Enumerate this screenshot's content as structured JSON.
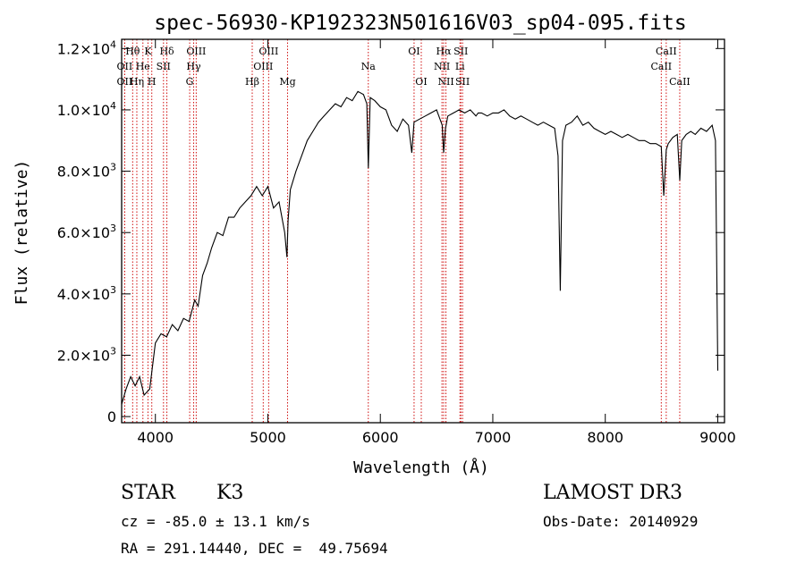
{
  "title": "spec-56930-KP192323N501616V03_sp04-095.fits",
  "chart_data": {
    "type": "line",
    "title": "spec-56930-KP192323N501616V03_sp04-095.fits",
    "xlabel": "Wavelength (Å)",
    "ylabel": "Flux (relative)",
    "xlim": [
      3700,
      9060
    ],
    "ylim": [
      -200,
      12300
    ],
    "x_ticks": [
      {
        "value": 4000,
        "label": "4000"
      },
      {
        "value": 5000,
        "label": "5000"
      },
      {
        "value": 6000,
        "label": "6000"
      },
      {
        "value": 7000,
        "label": "7000"
      },
      {
        "value": 8000,
        "label": "8000"
      },
      {
        "value": 9000,
        "label": "9000"
      }
    ],
    "y_ticks": [
      {
        "value": 0,
        "mant": "0",
        "exp": ""
      },
      {
        "value": 2000,
        "mant": "2.0×10",
        "exp": "3"
      },
      {
        "value": 4000,
        "mant": "4.0×10",
        "exp": "3"
      },
      {
        "value": 6000,
        "mant": "6.0×10",
        "exp": "3"
      },
      {
        "value": 8000,
        "mant": "8.0×10",
        "exp": "3"
      },
      {
        "value": 10000,
        "mant": "1.0×10",
        "exp": "4"
      },
      {
        "value": 12000,
        "mant": "1.2×10",
        "exp": "4"
      }
    ],
    "series": [
      {
        "x": [
          3700,
          3740,
          3780,
          3820,
          3860,
          3900,
          3950,
          4000,
          4050,
          4100,
          4150,
          4200,
          4250,
          4300,
          4350,
          4380,
          4420,
          4460,
          4500,
          4550,
          4600,
          4650,
          4700,
          4750,
          4800,
          4850,
          4900,
          4950,
          5000,
          5050,
          5100,
          5150,
          5170,
          5180,
          5200,
          5250,
          5300,
          5350,
          5400,
          5450,
          5500,
          5550,
          5600,
          5650,
          5700,
          5750,
          5800,
          5850,
          5880,
          5893,
          5910,
          5950,
          6000,
          6050,
          6100,
          6150,
          6200,
          6250,
          6280,
          6300,
          6350,
          6400,
          6450,
          6500,
          6550,
          6563,
          6580,
          6600,
          6650,
          6700,
          6750,
          6800,
          6850,
          6870,
          6900,
          6950,
          7000,
          7050,
          7100,
          7150,
          7200,
          7250,
          7300,
          7350,
          7400,
          7450,
          7500,
          7550,
          7580,
          7600,
          7620,
          7650,
          7700,
          7750,
          7800,
          7850,
          7900,
          7950,
          8000,
          8050,
          8100,
          8150,
          8200,
          8250,
          8300,
          8350,
          8400,
          8450,
          8498,
          8520,
          8542,
          8560,
          8600,
          8640,
          8662,
          8680,
          8720,
          8760,
          8800,
          8850,
          8900,
          8950,
          8980,
          9000
        ],
        "values": [
          400,
          900,
          1300,
          1000,
          1300,
          700,
          900,
          2400,
          2700,
          2600,
          3000,
          2800,
          3200,
          3100,
          3800,
          3600,
          4600,
          5000,
          5500,
          6000,
          5900,
          6500,
          6500,
          6800,
          7000,
          7200,
          7500,
          7200,
          7500,
          6800,
          7000,
          6000,
          5200,
          6400,
          7400,
          8000,
          8500,
          9000,
          9300,
          9600,
          9800,
          10000,
          10200,
          10100,
          10400,
          10300,
          10600,
          10500,
          10200,
          8100,
          10400,
          10300,
          10100,
          10000,
          9500,
          9300,
          9700,
          9500,
          8600,
          9600,
          9700,
          9800,
          9900,
          10000,
          9500,
          8600,
          9400,
          9800,
          9900,
          10000,
          9900,
          10000,
          9800,
          9900,
          9900,
          9800,
          9900,
          9900,
          10000,
          9800,
          9700,
          9800,
          9700,
          9600,
          9500,
          9600,
          9500,
          9400,
          8500,
          4100,
          9000,
          9500,
          9600,
          9800,
          9500,
          9600,
          9400,
          9300,
          9200,
          9300,
          9200,
          9100,
          9200,
          9100,
          9000,
          9000,
          8900,
          8900,
          8800,
          7200,
          8700,
          8900,
          9100,
          9200,
          7700,
          9000,
          9200,
          9300,
          9200,
          9400,
          9300,
          9500,
          9000,
          1500
        ],
        "color": "#000000"
      }
    ],
    "lines": [
      {
        "label": "Hθ",
        "x": 3798,
        "row": 1
      },
      {
        "label": "OII",
        "x": 3727,
        "row": 2
      },
      {
        "label": "OII",
        "x": 3727,
        "row": 3
      },
      {
        "label": "He",
        "x": 3889,
        "row": 2
      },
      {
        "label": "Hη",
        "x": 3835,
        "row": 3
      },
      {
        "label": "K",
        "x": 3934,
        "row": 1
      },
      {
        "label": "H",
        "x": 3968,
        "row": 3
      },
      {
        "label": "SII",
        "x": 4072,
        "row": 2
      },
      {
        "label": "Hδ",
        "x": 4102,
        "row": 1
      },
      {
        "label": "OIII",
        "x": 4363,
        "row": 1
      },
      {
        "label": "Hγ",
        "x": 4340,
        "row": 2
      },
      {
        "label": "G",
        "x": 4305,
        "row": 3
      },
      {
        "label": "Hβ",
        "x": 4861,
        "row": 3
      },
      {
        "label": "OIII",
        "x": 4959,
        "row": 2
      },
      {
        "label": "OIII",
        "x": 5007,
        "row": 1
      },
      {
        "label": "Mg",
        "x": 5175,
        "row": 3
      },
      {
        "label": "Na",
        "x": 5893,
        "row": 2
      },
      {
        "label": "OI",
        "x": 6300,
        "row": 1
      },
      {
        "label": "OI",
        "x": 6364,
        "row": 3
      },
      {
        "label": "NII",
        "x": 6548,
        "row": 2
      },
      {
        "label": "Hα",
        "x": 6563,
        "row": 1
      },
      {
        "label": "NII",
        "x": 6583,
        "row": 3
      },
      {
        "label": "SII",
        "x": 6716,
        "row": 1
      },
      {
        "label": "Li",
        "x": 6708,
        "row": 2
      },
      {
        "label": "SII",
        "x": 6731,
        "row": 3
      },
      {
        "label": "CaII",
        "x": 8498,
        "row": 2
      },
      {
        "label": "CaII",
        "x": 8542,
        "row": 1
      },
      {
        "label": "CaII",
        "x": 8662,
        "row": 3
      }
    ]
  },
  "info": {
    "object_type": "STAR",
    "subclass": "K3",
    "survey": "LAMOST DR3",
    "cz": "cz = -85.0 ± 13.1 km/s",
    "obs_date": "Obs-Date: 20140929",
    "coords": "RA = 291.14440, DEC =  49.75694"
  }
}
